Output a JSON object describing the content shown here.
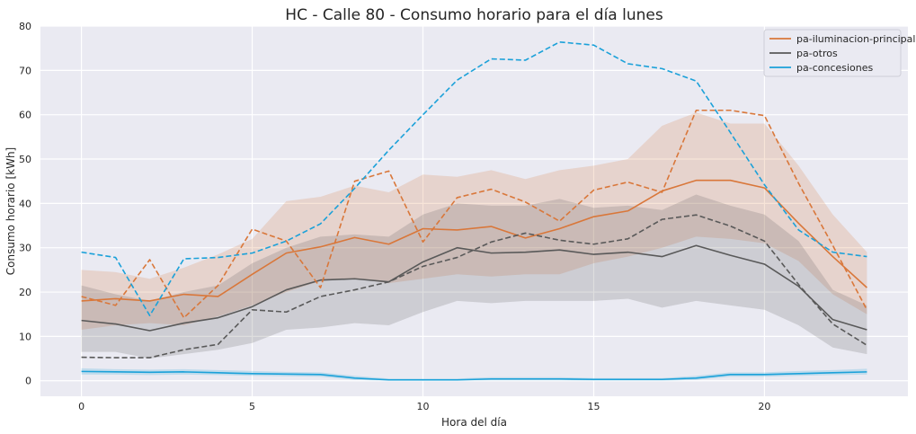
{
  "chart_data": {
    "type": "line",
    "title": "HC - Calle 80 - Consumo horario para el día lunes",
    "xlabel": "Hora del día",
    "ylabel": "Consumo horario [kWh]",
    "xlim": [
      -1.2,
      24.2
    ],
    "ylim": [
      -3.5,
      80
    ],
    "xticks": [
      0,
      5,
      10,
      15,
      20
    ],
    "yticks": [
      0,
      10,
      20,
      30,
      40,
      50,
      60,
      70,
      80
    ],
    "grid": true,
    "legend_position": "top-right",
    "colors": {
      "background": "#eaeaf2",
      "grid": "#ffffff",
      "pa-iluminacion-principal": "#d9773a",
      "pa-otros": "#595959",
      "pa-concesiones": "#1ba1d9"
    },
    "x": [
      0,
      1,
      2,
      3,
      4,
      5,
      6,
      7,
      8,
      9,
      10,
      11,
      12,
      13,
      14,
      15,
      16,
      17,
      18,
      19,
      20,
      21,
      22,
      23
    ],
    "series": [
      {
        "name": "pa-iluminacion-principal",
        "style": "solid",
        "values": [
          18.0,
          18.5,
          18.0,
          19.5,
          19.0,
          24.0,
          28.8,
          30.2,
          32.3,
          30.8,
          34.3,
          34.0,
          34.8,
          32.2,
          34.3,
          37.0,
          38.3,
          42.8,
          45.2,
          45.2,
          43.5,
          35.5,
          28.0,
          21.0
        ],
        "band_low": [
          11.5,
          12.5,
          13.0,
          12.5,
          14.5,
          17.0,
          20.0,
          22.5,
          23.0,
          22.0,
          23.0,
          24.0,
          23.5,
          24.0,
          24.0,
          26.5,
          28.0,
          30.0,
          32.5,
          32.0,
          31.0,
          27.0,
          19.5,
          15.0
        ],
        "band_high": [
          25.0,
          24.5,
          23.0,
          25.5,
          28.5,
          32.0,
          40.5,
          41.5,
          44.0,
          42.5,
          46.5,
          46.0,
          47.5,
          45.5,
          47.5,
          48.5,
          50.0,
          57.5,
          60.5,
          58.0,
          58.0,
          48.5,
          37.5,
          29.0
        ]
      },
      {
        "name": "pa-otros",
        "style": "solid",
        "values": [
          13.6,
          12.8,
          11.3,
          13.0,
          14.2,
          16.7,
          20.5,
          22.7,
          23.0,
          22.3,
          26.8,
          30.0,
          28.8,
          29.0,
          29.5,
          28.5,
          29.0,
          28.0,
          30.5,
          28.3,
          26.3,
          21.3,
          13.8,
          11.5
        ],
        "band_low": [
          6.5,
          6.5,
          5.0,
          6.0,
          7.0,
          8.5,
          11.5,
          12.0,
          13.0,
          12.5,
          15.5,
          18.0,
          17.5,
          18.0,
          18.0,
          18.0,
          18.5,
          16.5,
          18.0,
          17.0,
          16.0,
          12.5,
          7.5,
          6.0
        ],
        "band_high": [
          21.5,
          19.5,
          18.0,
          20.0,
          21.5,
          26.5,
          30.0,
          32.5,
          33.0,
          32.5,
          37.5,
          40.0,
          39.5,
          39.5,
          41.0,
          39.0,
          39.5,
          38.5,
          42.0,
          39.5,
          37.5,
          31.5,
          20.5,
          17.0
        ]
      },
      {
        "name": "pa-concesiones",
        "style": "solid",
        "values": [
          2.1,
          2.0,
          1.9,
          2.0,
          1.8,
          1.6,
          1.5,
          1.4,
          0.6,
          0.2,
          0.2,
          0.2,
          0.4,
          0.4,
          0.4,
          0.3,
          0.3,
          0.3,
          0.6,
          1.4,
          1.4,
          1.6,
          1.8,
          2.0
        ],
        "band_low": [
          1.4,
          1.4,
          1.3,
          1.4,
          1.3,
          1.1,
          1.0,
          0.9,
          0.2,
          0.0,
          0.0,
          0.0,
          0.1,
          0.1,
          0.1,
          0.0,
          0.0,
          0.0,
          0.2,
          0.9,
          0.9,
          1.1,
          1.3,
          1.4
        ],
        "band_high": [
          2.8,
          2.6,
          2.5,
          2.6,
          2.4,
          2.2,
          2.0,
          1.9,
          1.1,
          0.5,
          0.5,
          0.5,
          0.8,
          0.8,
          0.8,
          0.6,
          0.6,
          0.6,
          1.1,
          1.9,
          1.9,
          2.2,
          2.4,
          2.7
        ]
      },
      {
        "name": "pa-iluminacion-principal-dashed",
        "style": "dashed",
        "color_key": "pa-iluminacion-principal",
        "values": [
          19.0,
          17.0,
          27.3,
          14.2,
          21.5,
          34.2,
          31.5,
          21.0,
          45.0,
          47.3,
          31.3,
          41.3,
          43.2,
          40.3,
          36.0,
          43.0,
          44.8,
          42.5,
          61.0,
          61.0,
          59.8,
          44.5,
          30.5,
          16.0
        ]
      },
      {
        "name": "pa-otros-dashed",
        "style": "dashed",
        "color_key": "pa-otros",
        "values": [
          5.3,
          5.2,
          5.2,
          7.0,
          8.2,
          16.0,
          15.5,
          19.0,
          20.5,
          22.3,
          25.8,
          27.8,
          31.3,
          33.3,
          31.7,
          30.8,
          32.0,
          36.4,
          37.4,
          34.9,
          31.5,
          21.7,
          12.8,
          8.0
        ]
      },
      {
        "name": "pa-concesiones-dashed",
        "style": "dashed",
        "color_key": "pa-concesiones",
        "values": [
          29.0,
          27.8,
          14.7,
          27.5,
          27.8,
          28.8,
          31.5,
          35.4,
          43.4,
          52.0,
          60.0,
          67.8,
          72.6,
          72.3,
          76.4,
          75.7,
          71.5,
          70.4,
          67.6,
          56.0,
          44.2,
          34.0,
          29.0,
          28.0
        ]
      }
    ],
    "legend": [
      "pa-iluminacion-principal",
      "pa-otros",
      "pa-concesiones"
    ]
  }
}
